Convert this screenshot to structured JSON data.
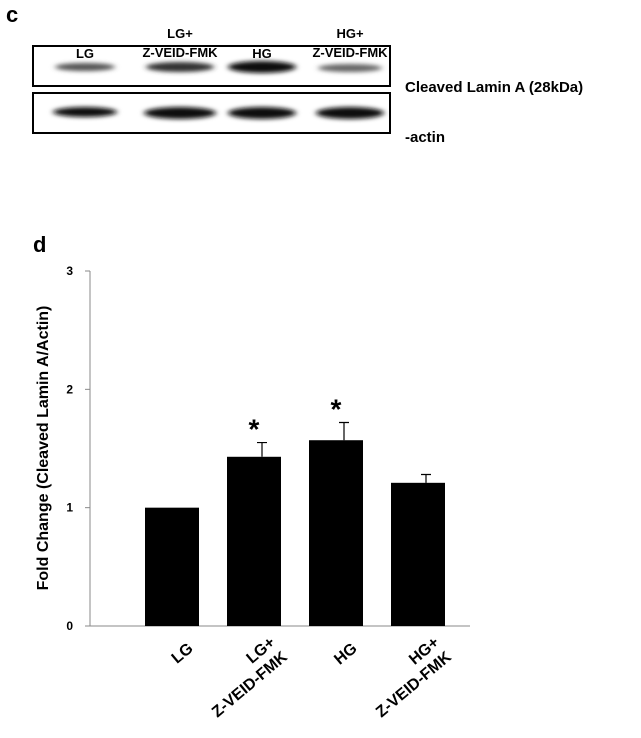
{
  "blot": {
    "panel_label": "c",
    "lanes": [
      "LG",
      "LG+ Z-VEID-FMK",
      "HG",
      "HG+ Z-VEID-FMK"
    ],
    "rows": [
      "Cleaved Lamin A  (28kDa)",
      "-actin"
    ]
  },
  "chart_data": {
    "type": "bar",
    "panel_label": "d",
    "y_label": "Fold Change (Cleaved Lamin A/Actin)",
    "categories": [
      "LG",
      "LG+ Z-VEID-FMK",
      "HG",
      "HG+ Z-VEID-FMK"
    ],
    "values": [
      1.0,
      1.43,
      1.57,
      1.21
    ],
    "errors": [
      0,
      0.12,
      0.15,
      0.07
    ],
    "significance": [
      null,
      "*",
      "*",
      null
    ],
    "color": "#000000",
    "ylim": [
      0,
      3
    ],
    "yticks": [
      0,
      1,
      2,
      3
    ],
    "grid": false
  }
}
